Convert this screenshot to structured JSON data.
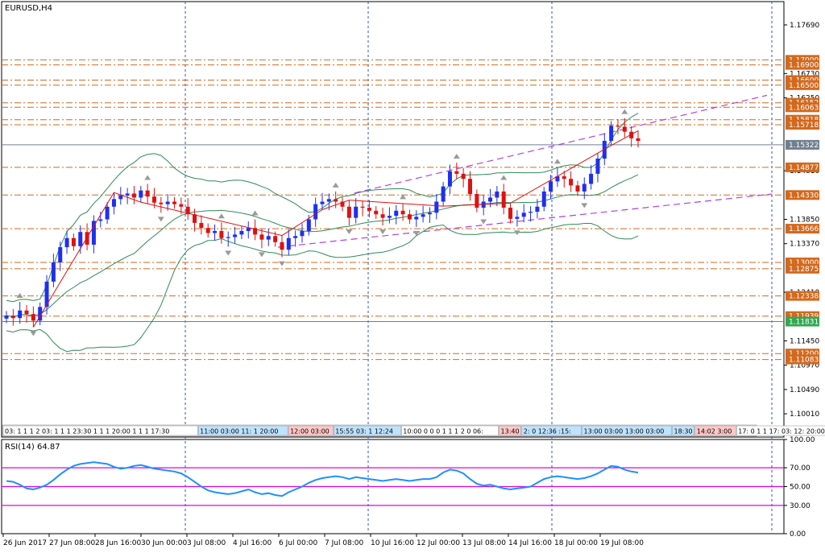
{
  "chart_data": {
    "type": "candlestick",
    "title": "EURUSD,H4",
    "price_axis": {
      "range": [
        1.0955,
        1.1815
      ],
      "ticks": [
        "1.17690",
        "1.16730",
        "1.16250",
        "1.14810",
        "1.13850",
        "1.13370",
        "1.12410",
        "1.11450",
        "1.10970",
        "1.10490",
        "1.10010"
      ]
    },
    "date_axis": {
      "labels": [
        "26 Jun 2017",
        "27 Jun 08:00",
        "28 Jun 16:00",
        "30 Jun 00:00",
        "3 Jul 08:00",
        "4 Jul 16:00",
        "6 Jul 00:00",
        "7 Jul 08:00",
        "10 Jul 16:00",
        "12 Jul 00:00",
        "13 Jul 08:00",
        "14 Jul 16:00",
        "18 Jul 00:00",
        "19 Jul 08:00"
      ]
    },
    "horizontal_levels": [
      {
        "label": "1.17000",
        "value": 1.17,
        "color": "#d2691e",
        "style": "dashdot"
      },
      {
        "label": "1.16900",
        "value": 1.169,
        "color": "#d2691e",
        "style": "dashdot"
      },
      {
        "label": "1.16600",
        "value": 1.166,
        "color": "#d2691e",
        "style": "dashdot"
      },
      {
        "label": "1.16500",
        "value": 1.165,
        "color": "#d2691e",
        "style": "dashdot"
      },
      {
        "label": "1.16152",
        "value": 1.16152,
        "color": "#d2691e",
        "style": "dashdot"
      },
      {
        "label": "1.16063",
        "value": 1.16063,
        "color": "#d2691e",
        "style": "dashdot"
      },
      {
        "label": "1.15818",
        "value": 1.15818,
        "color": "#d2691e",
        "style": "dashdot"
      },
      {
        "label": "1.15718",
        "value": 1.15718,
        "color": "#d2691e",
        "style": "dashdot"
      },
      {
        "label": "1.15322",
        "value": 1.15322,
        "color": "#708090",
        "style": "solid"
      },
      {
        "label": "1.14877",
        "value": 1.14877,
        "color": "#d2691e",
        "style": "dashdot"
      },
      {
        "label": "1.14330",
        "value": 1.1433,
        "color": "#d2691e",
        "style": "dashdot"
      },
      {
        "label": "1.13666",
        "value": 1.13666,
        "color": "#d2691e",
        "style": "dashdot"
      },
      {
        "label": "1.13000",
        "value": 1.13,
        "color": "#d2691e",
        "style": "dashdot"
      },
      {
        "label": "1.12875",
        "value": 1.12875,
        "color": "#d2691e",
        "style": "dashdot"
      },
      {
        "label": "1.12338",
        "value": 1.12338,
        "color": "#d2691e",
        "style": "dashdot"
      },
      {
        "label": "1.11939",
        "value": 1.11939,
        "color": "#d2691e",
        "style": "dashdot"
      },
      {
        "label": "1.11831",
        "value": 1.11831,
        "color": "#32a852",
        "style": "solid"
      },
      {
        "label": "1.11200",
        "value": 1.112,
        "color": "#d2691e",
        "style": "dashdot"
      },
      {
        "label": "1.11083",
        "value": 1.11083,
        "color": "#d2691e",
        "style": "dashdot"
      }
    ],
    "candles_close": [
      1.1195,
      1.119,
      1.1205,
      1.1198,
      1.1185,
      1.1212,
      1.1262,
      1.13,
      1.133,
      1.1348,
      1.1332,
      1.136,
      1.1335,
      1.1382,
      1.1385,
      1.141,
      1.1425,
      1.1432,
      1.1436,
      1.1428,
      1.1442,
      1.143,
      1.1418,
      1.1415,
      1.142,
      1.1415,
      1.141,
      1.1395,
      1.1378,
      1.1368,
      1.1358,
      1.1362,
      1.1348,
      1.135,
      1.1355,
      1.1362,
      1.1368,
      1.1355,
      1.1345,
      1.1352,
      1.134,
      1.1325,
      1.1348,
      1.1352,
      1.1362,
      1.1385,
      1.1415,
      1.142,
      1.1425,
      1.142,
      1.141,
      1.1388,
      1.141,
      1.1408,
      1.1402,
      1.1395,
      1.1388,
      1.1392,
      1.1402,
      1.1395,
      1.1385,
      1.139,
      1.1395,
      1.1398,
      1.142,
      1.145,
      1.148,
      1.1475,
      1.1465,
      1.1435,
      1.1408,
      1.142,
      1.1428,
      1.144,
      1.1408,
      1.1386,
      1.139,
      1.1398,
      1.14,
      1.141,
      1.144,
      1.146,
      1.147,
      1.1465,
      1.1452,
      1.144,
      1.1455,
      1.1475,
      1.1505,
      1.154,
      1.157,
      1.1568,
      1.1558,
      1.1545,
      1.154
    ],
    "rsi": {
      "label": "RSI(14) 64.87",
      "period": 14,
      "last": 64.87,
      "levels": [
        70,
        50,
        30
      ],
      "ticks": [
        "100.00",
        "70.00",
        "50.00",
        "30.00",
        "0.00"
      ],
      "values": [
        56,
        55,
        52,
        48,
        47,
        49,
        52,
        57,
        63,
        68,
        72,
        74,
        75,
        76,
        75,
        74,
        71,
        69,
        70,
        72,
        73,
        71,
        69,
        68,
        67,
        66,
        64,
        60,
        55,
        50,
        46,
        44,
        43,
        42,
        43,
        45,
        47,
        44,
        42,
        43,
        41,
        40,
        44,
        47,
        50,
        54,
        57,
        59,
        60,
        61,
        60,
        58,
        60,
        59,
        58,
        57,
        56,
        57,
        58,
        57,
        56,
        57,
        58,
        58,
        60,
        65,
        68,
        67,
        64,
        58,
        53,
        51,
        52,
        50,
        48,
        47,
        48,
        49,
        50,
        54,
        58,
        60,
        61,
        60,
        59,
        58,
        59,
        61,
        64,
        68,
        72,
        71,
        68,
        66,
        64.87
      ]
    },
    "overlays": [
      "Bollinger bands",
      "ZigZag",
      "Fractals",
      "price channel"
    ]
  },
  "status_strip": [
    {
      "text": "03: 1 1 1 2 03: 1 1 1 23:30 1 1 1 20:00 1 1 1 17:30",
      "color": "#ffffff"
    },
    {
      "text": "11:00 03:00 11: 1 20:00",
      "color": "#bfe3ff"
    },
    {
      "text": "12:00 03:00",
      "color": "#ffc8c8"
    },
    {
      "text": "15:55 03: 1 12:24",
      "color": "#bfe3ff"
    },
    {
      "text": "10:00 0 0 0 1 1 1 2 0 06:",
      "color": "#ffffff"
    },
    {
      "text": "13:40",
      "color": "#ffc8c8"
    },
    {
      "text": "2: 0 12:36 :15:",
      "color": "#bfe3ff"
    },
    {
      "text": "13:00 03:00 13:00 03:00",
      "color": "#bfe3ff"
    },
    {
      "text": "18:30",
      "color": "#bfe3ff"
    },
    {
      "text": "14:02 3:00",
      "color": "#ffc8c8"
    },
    {
      "text": "17: 0 1 1 17: 03: 12: 20:00",
      "color": "#ffffff"
    }
  ],
  "colors": {
    "bull": "#1e2ff0",
    "bear": "#e01010",
    "bands": "#2e8b57",
    "zigzag": "#e01010",
    "channel": "#b040e0",
    "rsi_line": "#1e90ff",
    "rsi_levels": "#e000e0",
    "grid_vertical": "#3050d0"
  }
}
